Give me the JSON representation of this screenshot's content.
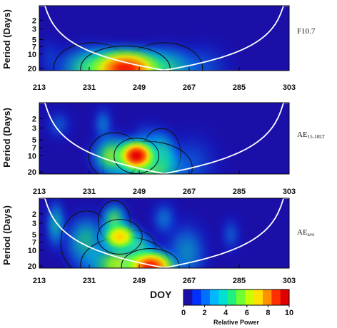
{
  "colors": {
    "colormap": [
      "#1a10a8",
      "#0030ff",
      "#0070ff",
      "#00b8ff",
      "#00e0d0",
      "#20f080",
      "#70ff30",
      "#c8ff00",
      "#ffe000",
      "#ff9000",
      "#ff3000",
      "#e00000"
    ]
  },
  "chart_data": [
    {
      "type": "heatmap",
      "name": "F10.7",
      "xlabel": "",
      "ylabel": "Period (Days)",
      "xlim": [
        213,
        303
      ],
      "ylim": [
        1,
        22
      ],
      "y_scale": "log",
      "x_ticks": [
        213,
        231,
        249,
        267,
        285,
        303
      ],
      "y_ticks": [
        2,
        3,
        5,
        7,
        10,
        20
      ],
      "blobs": [
        {
          "x": 244,
          "period": 20,
          "power": 9.5,
          "sx": 14,
          "sy": 0.14
        },
        {
          "x": 232,
          "period": 20,
          "power": 5.5,
          "sx": 12,
          "sy": 0.16
        },
        {
          "x": 258,
          "period": 20,
          "power": 5.0,
          "sx": 12,
          "sy": 0.16
        },
        {
          "x": 272,
          "period": 19,
          "power": 2.5,
          "sx": 10,
          "sy": 0.18
        },
        {
          "x": 217,
          "period": 12,
          "power": 2.0,
          "sx": 5,
          "sy": 0.15
        }
      ]
    },
    {
      "type": "heatmap",
      "name": "AE15-18LT",
      "name_main": "AE",
      "name_sub": "15-18LT",
      "xlabel": "",
      "ylabel": "Period (Days)",
      "xlim": [
        213,
        303
      ],
      "ylim": [
        1,
        22
      ],
      "y_scale": "log",
      "x_ticks": [
        213,
        231,
        249,
        267,
        285,
        303
      ],
      "y_ticks": [
        2,
        3,
        5,
        7,
        10,
        20
      ],
      "blobs": [
        {
          "x": 248,
          "period": 10,
          "power": 10,
          "sx": 7,
          "sy": 0.1
        },
        {
          "x": 240,
          "period": 10,
          "power": 6,
          "sx": 8,
          "sy": 0.13
        },
        {
          "x": 257,
          "period": 9,
          "power": 5,
          "sx": 6,
          "sy": 0.14
        },
        {
          "x": 252,
          "period": 6.5,
          "power": 3.5,
          "sx": 7,
          "sy": 0.14
        },
        {
          "x": 252,
          "period": 17,
          "power": 5.5,
          "sx": 14,
          "sy": 0.15
        },
        {
          "x": 236,
          "period": 2.6,
          "power": 3.0,
          "sx": 4,
          "sy": 0.12
        },
        {
          "x": 220,
          "period": 2.6,
          "power": 2.5,
          "sx": 5,
          "sy": 0.1
        },
        {
          "x": 268,
          "period": 14,
          "power": 2.5,
          "sx": 10,
          "sy": 0.2
        }
      ]
    },
    {
      "type": "heatmap",
      "name": "AEave",
      "name_main": "AE",
      "name_sub": "ave",
      "xlabel": "DOY",
      "ylabel": "Period (Days)",
      "xlim": [
        213,
        303
      ],
      "ylim": [
        1,
        22
      ],
      "y_scale": "log",
      "x_ticks": [
        213,
        231,
        249,
        267,
        285,
        303
      ],
      "y_ticks": [
        2,
        3,
        5,
        7,
        10,
        20
      ],
      "blobs": [
        {
          "x": 253,
          "period": 20,
          "power": 9.5,
          "sx": 9,
          "sy": 0.1
        },
        {
          "x": 244,
          "period": 19,
          "power": 6.5,
          "sx": 14,
          "sy": 0.16
        },
        {
          "x": 242,
          "period": 5.5,
          "power": 7.5,
          "sx": 7,
          "sy": 0.1
        },
        {
          "x": 240,
          "period": 2.8,
          "power": 5.5,
          "sx": 5,
          "sy": 0.12
        },
        {
          "x": 248,
          "period": 9,
          "power": 6.0,
          "sx": 6,
          "sy": 0.1
        },
        {
          "x": 230,
          "period": 7,
          "power": 4.5,
          "sx": 8,
          "sy": 0.18
        },
        {
          "x": 219,
          "period": 3.2,
          "power": 4.0,
          "sx": 4,
          "sy": 0.16
        },
        {
          "x": 266,
          "period": 11,
          "power": 3.5,
          "sx": 8,
          "sy": 0.2
        },
        {
          "x": 258,
          "period": 2.5,
          "power": 3.0,
          "sx": 5,
          "sy": 0.12
        },
        {
          "x": 282,
          "period": 5,
          "power": 2.5,
          "sx": 4,
          "sy": 0.12
        }
      ]
    }
  ],
  "colorbar": {
    "label": "Relative Power",
    "range": [
      0,
      10
    ],
    "ticks": [
      "0",
      "2",
      "4",
      "6",
      "8",
      "10"
    ]
  }
}
